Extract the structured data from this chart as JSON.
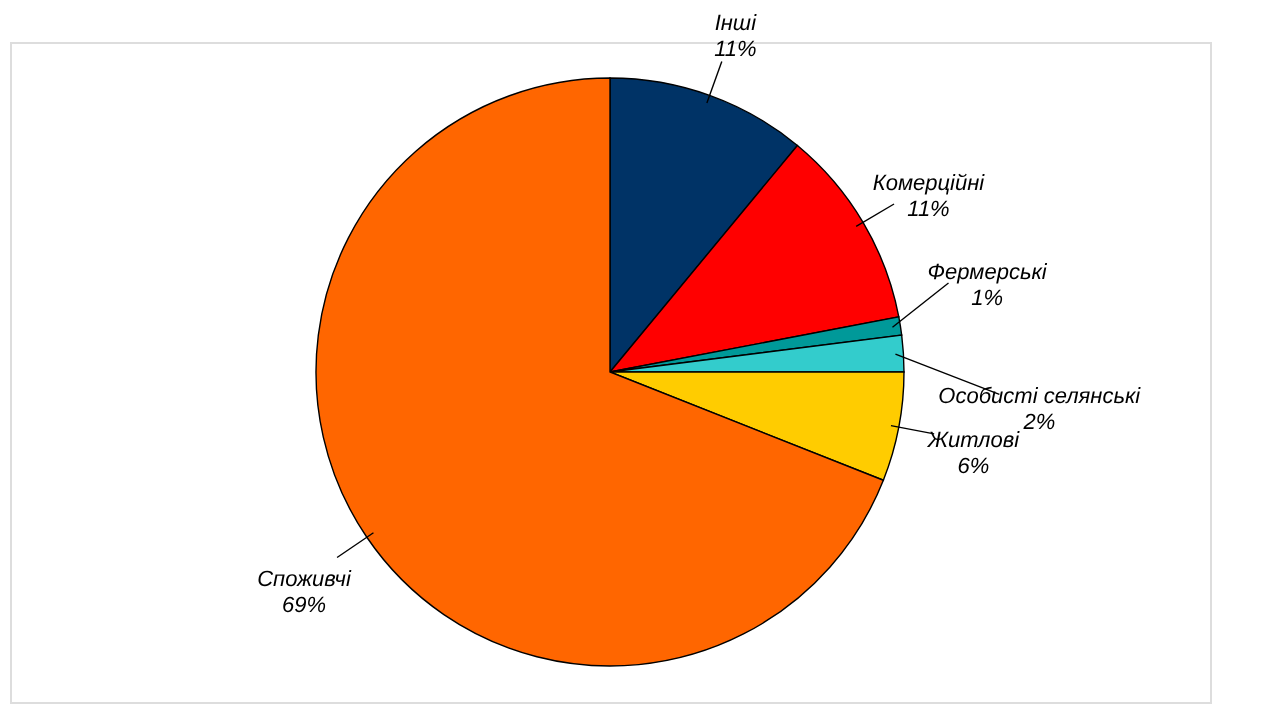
{
  "chart_data": {
    "type": "pie",
    "categories": [
      "Інші",
      "Комерційні",
      "Фермерські",
      "Особисті селянські",
      "Житлові",
      "Споживчі"
    ],
    "values": [
      11,
      11,
      1,
      2,
      6,
      69
    ],
    "value_labels": [
      "11%",
      "11%",
      "1%",
      "2%",
      "6%",
      "69%"
    ],
    "colors": [
      "#003366",
      "#ff0000",
      "#009999",
      "#33cccc",
      "#ffcc00",
      "#ff6600"
    ],
    "legend": false
  }
}
